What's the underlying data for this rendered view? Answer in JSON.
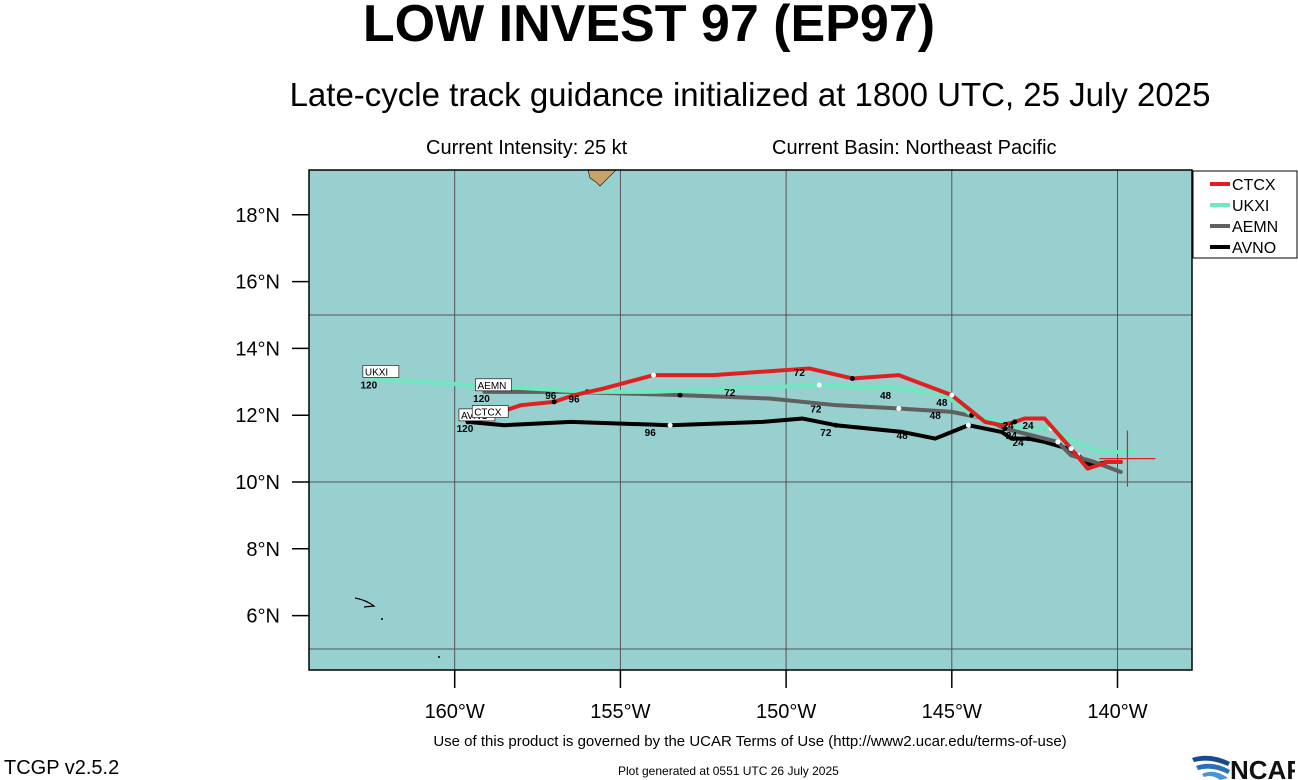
{
  "header": {
    "title": "LOW INVEST 97 (EP97)",
    "subtitle": "Late-cycle track guidance initialized at 1800 UTC, 25 July 2025",
    "intensity": "Current Intensity: 25 kt",
    "basin": "Current Basin: Northeast Pacific"
  },
  "map": {
    "ocean_color": "#98cfcf",
    "land_color": "#c8a36a",
    "grid_color": "#555555",
    "lat_ticks": [
      {
        "value": 6,
        "label": "6°N"
      },
      {
        "value": 8,
        "label": "8°N"
      },
      {
        "value": 10,
        "label": "10°N"
      },
      {
        "value": 12,
        "label": "12°N"
      },
      {
        "value": 14,
        "label": "14°N"
      },
      {
        "value": 16,
        "label": "16°N"
      },
      {
        "value": 18,
        "label": "18°N"
      }
    ],
    "lon_ticks": [
      {
        "value": -160,
        "label": "160°W"
      },
      {
        "value": -155,
        "label": "155°W"
      },
      {
        "value": -150,
        "label": "150°W"
      },
      {
        "value": -145,
        "label": "145°W"
      },
      {
        "value": -140,
        "label": "140°W"
      }
    ],
    "current_position": {
      "lon": -139.7,
      "lat": 10.7
    }
  },
  "legend": {
    "items": [
      {
        "name": "CTCX",
        "color": "#e02020"
      },
      {
        "name": "UKXI",
        "color": "#6fe8c0"
      },
      {
        "name": "AEMN",
        "color": "#606060"
      },
      {
        "name": "AVNO",
        "color": "#000000"
      }
    ]
  },
  "tracks": [
    {
      "name": "AVNO",
      "color": "#000000",
      "end_label": "AVNO",
      "end_hour": "120",
      "points": [
        [
          -139.9,
          10.6
        ],
        [
          -140.3,
          10.6
        ],
        [
          -140.8,
          10.5
        ],
        [
          -141.2,
          10.8
        ],
        [
          -141.5,
          11.0
        ],
        [
          -142.2,
          11.2
        ],
        [
          -142.7,
          11.3
        ],
        [
          -143.2,
          11.3
        ],
        [
          -143.5,
          11.5
        ],
        [
          -144.5,
          11.7
        ],
        [
          -145.5,
          11.3
        ],
        [
          -146.5,
          11.5
        ],
        [
          -148.5,
          11.7
        ],
        [
          -149.5,
          11.9
        ],
        [
          -150.7,
          11.8
        ],
        [
          -153.5,
          11.7
        ],
        [
          -156.5,
          11.8
        ],
        [
          -158.5,
          11.7
        ],
        [
          -159.6,
          11.8
        ]
      ],
      "hour_labels": [
        {
          "text": "24",
          "lon": -143.0,
          "lat": 11.2
        },
        {
          "text": "48",
          "lon": -146.5,
          "lat": 11.4
        },
        {
          "text": "72",
          "lon": -148.8,
          "lat": 11.5
        },
        {
          "text": "96",
          "lon": -154.1,
          "lat": 11.5
        }
      ]
    },
    {
      "name": "AEMN",
      "color": "#606060",
      "end_label": "AEMN",
      "end_hour": "120",
      "points": [
        [
          -139.9,
          10.3
        ],
        [
          -140.7,
          10.6
        ],
        [
          -141.4,
          10.8
        ],
        [
          -141.8,
          11.2
        ],
        [
          -142.6,
          11.4
        ],
        [
          -143.0,
          11.5
        ],
        [
          -143.4,
          11.6
        ],
        [
          -144.0,
          11.9
        ],
        [
          -145.0,
          12.1
        ],
        [
          -146.6,
          12.2
        ],
        [
          -148.5,
          12.3
        ],
        [
          -150.5,
          12.5
        ],
        [
          -153.2,
          12.6
        ],
        [
          -156.5,
          12.7
        ],
        [
          -159.1,
          12.7
        ]
      ],
      "hour_labels": [
        {
          "text": "24",
          "lon": -143.2,
          "lat": 11.4
        },
        {
          "text": "48",
          "lon": -145.5,
          "lat": 12.0
        },
        {
          "text": "72",
          "lon": -149.1,
          "lat": 12.2
        },
        {
          "text": "96",
          "lon": -156.4,
          "lat": 12.5
        }
      ]
    },
    {
      "name": "UKXI",
      "color": "#6fe8c0",
      "end_label": "UKXI",
      "end_hour": "120",
      "points": [
        [
          -139.5,
          10.9
        ],
        [
          -140.5,
          10.9
        ],
        [
          -141.3,
          11.2
        ],
        [
          -142.0,
          11.6
        ],
        [
          -142.8,
          11.6
        ],
        [
          -143.5,
          11.8
        ],
        [
          -144.4,
          12.0
        ],
        [
          -145.2,
          12.6
        ],
        [
          -146.5,
          12.8
        ],
        [
          -149.0,
          12.9
        ],
        [
          -151.5,
          12.8
        ],
        [
          -154.0,
          12.7
        ],
        [
          -156.0,
          12.7
        ],
        [
          -159.5,
          12.9
        ],
        [
          -162.5,
          13.1
        ]
      ],
      "hour_labels": [
        {
          "text": "24",
          "lon": -143.3,
          "lat": 11.7
        },
        {
          "text": "48",
          "lon": -147.0,
          "lat": 12.6
        },
        {
          "text": "72",
          "lon": -151.7,
          "lat": 12.7
        },
        {
          "text": "96",
          "lon": -157.1,
          "lat": 12.6
        }
      ]
    },
    {
      "name": "CTCX",
      "color": "#e02020",
      "end_label": "CTCX",
      "end_hour": "",
      "points": [
        [
          -139.9,
          10.6
        ],
        [
          -140.3,
          10.6
        ],
        [
          -140.9,
          10.4
        ],
        [
          -141.4,
          11.0
        ],
        [
          -142.2,
          11.9
        ],
        [
          -142.8,
          11.9
        ],
        [
          -143.1,
          11.8
        ],
        [
          -143.5,
          11.7
        ],
        [
          -144.0,
          11.8
        ],
        [
          -145.0,
          12.6
        ],
        [
          -145.8,
          12.9
        ],
        [
          -146.6,
          13.2
        ],
        [
          -148.0,
          13.1
        ],
        [
          -149.3,
          13.4
        ],
        [
          -152.2,
          13.2
        ],
        [
          -154.0,
          13.2
        ],
        [
          -155.5,
          12.8
        ],
        [
          -156.4,
          12.6
        ],
        [
          -157.0,
          12.4
        ],
        [
          -158.0,
          12.3
        ],
        [
          -159.2,
          11.9
        ]
      ],
      "hour_labels": [
        {
          "text": "24",
          "lon": -142.7,
          "lat": 11.7
        },
        {
          "text": "48",
          "lon": -145.3,
          "lat": 12.4
        },
        {
          "text": "72",
          "lon": -149.6,
          "lat": 13.3
        }
      ]
    }
  ],
  "footer": {
    "terms": "Use of this product is governed by the UCAR Terms of Use (http://www2.ucar.edu/terms-of-use)",
    "version": "TCGP v2.5.2",
    "generated": "Plot generated at 0551 UTC   26 July 2025",
    "logo": "NCAR"
  }
}
